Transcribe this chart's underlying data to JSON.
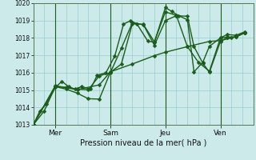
{
  "title": "",
  "xlabel": "Pression niveau de la mer( hPa )",
  "ylim": [
    1013,
    1020
  ],
  "xlim": [
    0,
    100
  ],
  "yticks": [
    1013,
    1014,
    1015,
    1016,
    1017,
    1018,
    1019,
    1020
  ],
  "xtick_positions": [
    10,
    35,
    60,
    85
  ],
  "xtick_labels": [
    "Mer",
    "Sam",
    "Jeu",
    "Ven"
  ],
  "vline_positions": [
    10,
    35,
    60,
    85
  ],
  "background_color": "#cceaea",
  "grid_color": "#99cccc",
  "line_color": "#1a5c1a",
  "line_width": 1.0,
  "marker_size": 2.5,
  "lines": [
    [
      0,
      1013.0,
      3,
      1013.8,
      6,
      1014.2,
      10,
      1015.15,
      13,
      1015.5,
      16,
      1015.2,
      19,
      1015.05,
      22,
      1015.2,
      26,
      1015.05,
      29,
      1015.85,
      33,
      1016.0,
      37,
      1016.95,
      41,
      1018.8,
      44,
      1018.98,
      47,
      1018.82,
      52,
      1017.82,
      55,
      1017.75,
      60,
      1019.75,
      63,
      1019.52,
      66,
      1019.28,
      70,
      1019.05,
      73,
      1016.05,
      77,
      1016.6,
      80,
      1017.52,
      85,
      1018.0,
      88,
      1018.2,
      92,
      1018.15,
      96,
      1018.35
    ],
    [
      0,
      1013.0,
      5,
      1013.8,
      10,
      1015.2,
      15,
      1015.15,
      20,
      1015.05,
      25,
      1015.02,
      30,
      1015.82,
      35,
      1016.0,
      40,
      1017.4,
      45,
      1018.88,
      50,
      1018.76,
      55,
      1017.58,
      60,
      1019.0,
      65,
      1019.28,
      70,
      1019.25,
      73,
      1017.5,
      77,
      1016.55,
      80,
      1016.02,
      85,
      1017.8,
      88,
      1018.02,
      92,
      1018.05,
      96,
      1018.3
    ],
    [
      0,
      1013.0,
      10,
      1015.2,
      15,
      1015.05,
      20,
      1014.82,
      25,
      1014.5,
      30,
      1014.48,
      35,
      1016.02,
      40,
      1016.5,
      45,
      1018.82,
      50,
      1018.78,
      55,
      1017.78,
      60,
      1019.5,
      65,
      1019.3,
      70,
      1017.5,
      75,
      1016.6,
      80,
      1016.08,
      85,
      1018.0,
      88,
      1018.05,
      92,
      1018.05,
      96,
      1018.3
    ],
    [
      0,
      1013.0,
      10,
      1015.25,
      20,
      1015.02,
      30,
      1015.3,
      35,
      1016.05,
      45,
      1016.5,
      55,
      1016.98,
      60,
      1017.18,
      70,
      1017.5,
      80,
      1017.8,
      85,
      1017.85,
      90,
      1018.0,
      96,
      1018.3
    ]
  ]
}
